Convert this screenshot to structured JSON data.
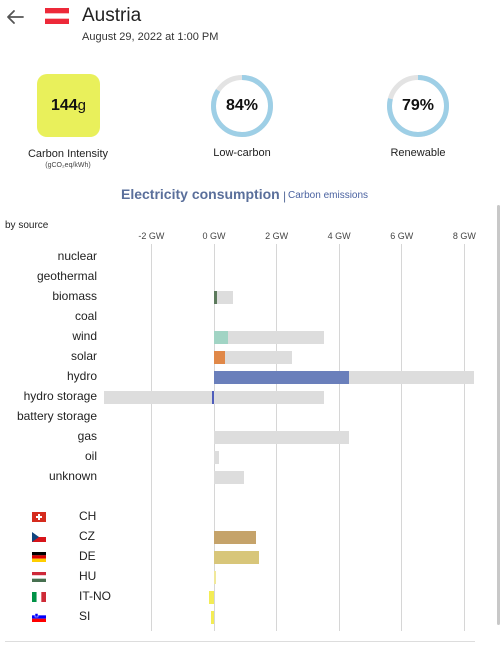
{
  "header": {
    "country": "Austria",
    "datetime": "August 29, 2022 at 1:00 PM"
  },
  "metrics": {
    "carbon_intensity": {
      "value": "144",
      "unit": "g",
      "label": "Carbon Intensity",
      "sublabel": "(gCO₂eq/kWh)",
      "color": "#e9f05b"
    },
    "low_carbon": {
      "value": "84%",
      "label": "Low-carbon",
      "fraction": 0.84
    },
    "renewable": {
      "value": "79%",
      "label": "Renewable",
      "fraction": 0.79
    }
  },
  "tabs": {
    "active": "Electricity consumption",
    "separator": "|",
    "inactive": "Carbon emissions"
  },
  "chart_data": {
    "type": "bar",
    "ylabel": "by source",
    "x_unit": "GW",
    "xlim": [
      -3.3,
      8.4
    ],
    "ticks": [
      "-2 GW",
      "0 GW",
      "2 GW",
      "4 GW",
      "6 GW",
      "8 GW"
    ],
    "tick_values": [
      -2,
      0,
      2,
      4,
      6,
      8
    ],
    "categories": [
      "nuclear",
      "geothermal",
      "biomass",
      "coal",
      "wind",
      "solar",
      "hydro",
      "hydro storage",
      "battery storage",
      "gas",
      "oil",
      "unknown"
    ],
    "production": [
      0,
      0,
      0.08,
      0,
      0.45,
      0.35,
      4.3,
      -0.05,
      0,
      0,
      0,
      0
    ],
    "capacity": [
      0,
      0,
      0.6,
      0,
      3.5,
      2.5,
      8.3,
      3.5,
      0,
      4.3,
      0.15,
      0.95
    ],
    "capacity_negative": [
      0,
      0,
      0,
      0,
      0,
      0,
      0,
      -3.5,
      0,
      0,
      0,
      0
    ],
    "colors": [
      "#aaaaaa",
      "#aaaaaa",
      "#5c7a5c",
      "#aaaaaa",
      "#a1d4c4",
      "#e08848",
      "#6a7fbb",
      "#4f5dbb",
      "#aaaaaa",
      "#aaaaaa",
      "#aaaaaa",
      "#aaaaaa"
    ],
    "exchanges": {
      "categories": [
        "CH",
        "CZ",
        "DE",
        "HU",
        "IT-NO",
        "SI"
      ],
      "values": [
        0,
        1.35,
        1.45,
        0.05,
        -0.15,
        -0.08
      ],
      "colors": [
        "#aaaaaa",
        "#c5a36a",
        "#d8c67a",
        "#f0e89a",
        "#f3ec55",
        "#f3ec55"
      ],
      "flags": [
        "ch-flag",
        "cz-flag",
        "de-flag",
        "hu-flag",
        "it-flag",
        "si-flag"
      ]
    }
  }
}
